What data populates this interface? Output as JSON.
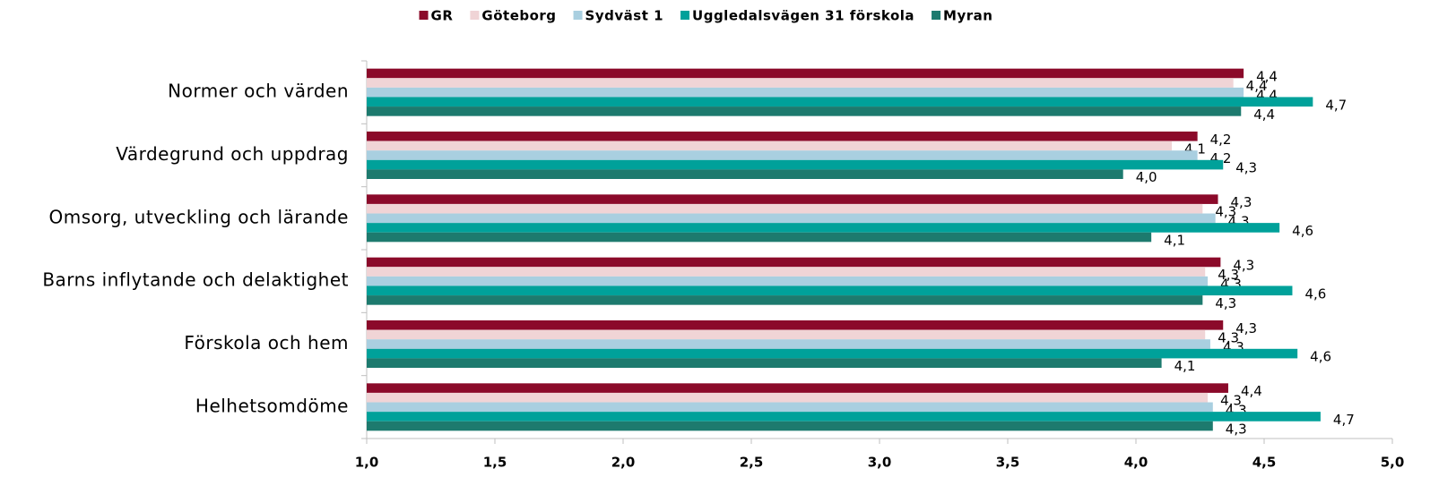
{
  "chart_data": {
    "type": "bar",
    "orientation": "horizontal",
    "categories": [
      "Normer och värden",
      "Värdegrund och uppdrag",
      "Omsorg, utveckling och lärande",
      "Barns inflytande och delaktighet",
      "Förskola och hem",
      "Helhetsomdöme"
    ],
    "series": [
      {
        "name": "GR",
        "color": "#8b0a2a",
        "values": [
          4.42,
          4.24,
          4.32,
          4.33,
          4.34,
          4.36
        ],
        "value_labels": [
          "4,4",
          "4,2",
          "4,3",
          "4,3",
          "4,3",
          "4,4"
        ]
      },
      {
        "name": "Göteborg",
        "color": "#f0d4d6",
        "values": [
          4.38,
          4.14,
          4.26,
          4.27,
          4.27,
          4.28
        ],
        "value_labels": [
          "4,4",
          "4,1",
          "4,3",
          "4,3",
          "4,3",
          "4,3"
        ]
      },
      {
        "name": "Sydväst 1",
        "color": "#a9cfe0",
        "values": [
          4.42,
          4.24,
          4.31,
          4.28,
          4.29,
          4.3
        ],
        "value_labels": [
          "4,4",
          "4,2",
          "4,3",
          "4,3",
          "4,3",
          "4,3"
        ]
      },
      {
        "name": "Uggledalsvägen 31 förskola",
        "color": "#00a19a",
        "values": [
          4.69,
          4.34,
          4.56,
          4.61,
          4.63,
          4.72
        ],
        "value_labels": [
          "4,7",
          "4,3",
          "4,6",
          "4,6",
          "4,6",
          "4,7"
        ]
      },
      {
        "name": "Myran",
        "color": "#1d7a6e",
        "values": [
          4.41,
          3.95,
          4.06,
          4.26,
          4.1,
          4.3
        ],
        "value_labels": [
          "4,4",
          "4,0",
          "4,1",
          "4,3",
          "4,1",
          "4,3"
        ]
      }
    ],
    "xlim": [
      1,
      5
    ],
    "xticks": [
      {
        "value": 1,
        "label": "1,0"
      },
      {
        "value": 1.5,
        "label": "1,5"
      },
      {
        "value": 2,
        "label": "2,0"
      },
      {
        "value": 2.5,
        "label": "2,5"
      },
      {
        "value": 3,
        "label": "3,0"
      },
      {
        "value": 3.5,
        "label": "3,5"
      },
      {
        "value": 4,
        "label": "4,0"
      },
      {
        "value": 4.5,
        "label": "4,5"
      },
      {
        "value": 5,
        "label": "5,0"
      }
    ],
    "legend": "top",
    "grid": false
  }
}
